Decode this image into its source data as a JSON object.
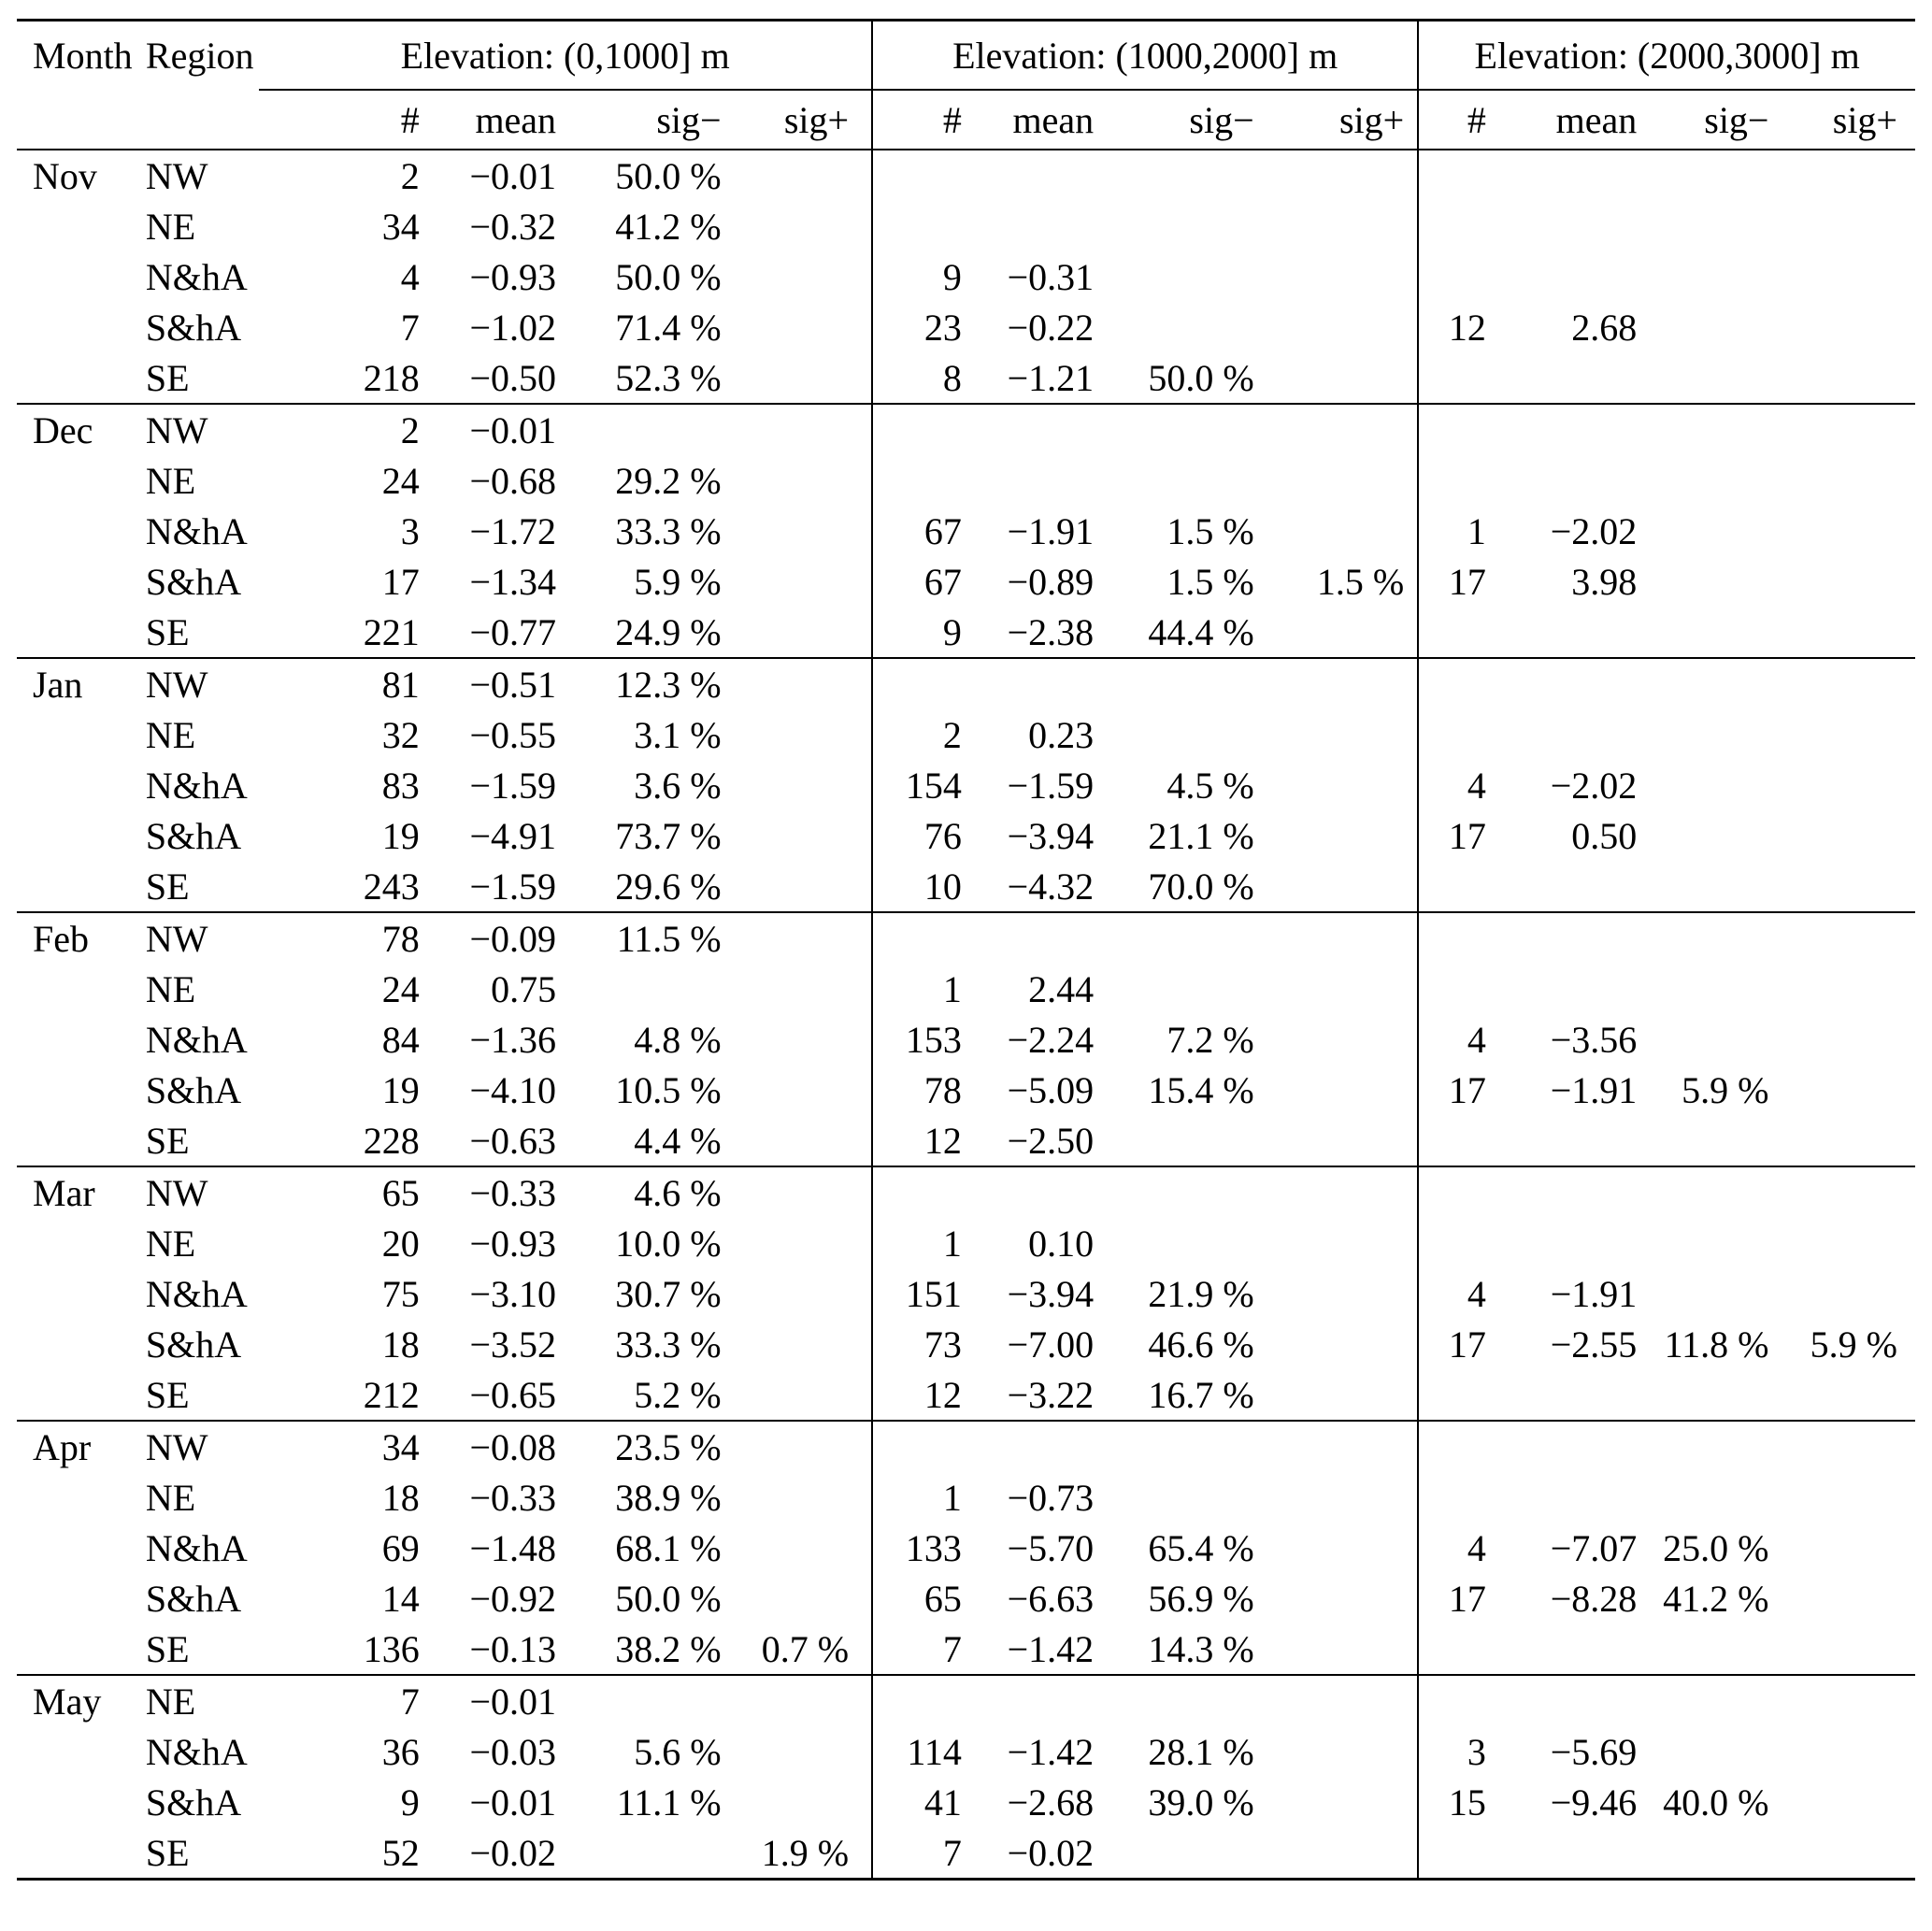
{
  "table": {
    "headers": {
      "month": "Month",
      "region": "Region"
    },
    "elevation_groups": [
      {
        "label": "Elevation: (0,1000] m",
        "subcols": [
          "#",
          "mean",
          "sig−",
          "sig+"
        ]
      },
      {
        "label": "Elevation: (1000,2000] m",
        "subcols": [
          "#",
          "mean",
          "sig−",
          "sig+"
        ]
      },
      {
        "label": "Elevation: (2000,3000] m",
        "subcols": [
          "#",
          "mean",
          "sig−",
          "sig+"
        ]
      }
    ],
    "months": [
      {
        "month": "Nov",
        "rows": [
          {
            "region": "NW",
            "g1": [
              "2",
              "−0.01",
              "50.0 %",
              ""
            ],
            "g2": [
              "",
              "",
              "",
              ""
            ],
            "g3": [
              "",
              "",
              "",
              ""
            ]
          },
          {
            "region": "NE",
            "g1": [
              "34",
              "−0.32",
              "41.2 %",
              ""
            ],
            "g2": [
              "",
              "",
              "",
              ""
            ],
            "g3": [
              "",
              "",
              "",
              ""
            ]
          },
          {
            "region": "N&hA",
            "g1": [
              "4",
              "−0.93",
              "50.0 %",
              ""
            ],
            "g2": [
              "9",
              "−0.31",
              "",
              ""
            ],
            "g3": [
              "",
              "",
              "",
              ""
            ]
          },
          {
            "region": "S&hA",
            "g1": [
              "7",
              "−1.02",
              "71.4 %",
              ""
            ],
            "g2": [
              "23",
              "−0.22",
              "",
              ""
            ],
            "g3": [
              "12",
              "2.68",
              "",
              ""
            ]
          },
          {
            "region": "SE",
            "g1": [
              "218",
              "−0.50",
              "52.3 %",
              ""
            ],
            "g2": [
              "8",
              "−1.21",
              "50.0 %",
              ""
            ],
            "g3": [
              "",
              "",
              "",
              ""
            ]
          }
        ]
      },
      {
        "month": "Dec",
        "rows": [
          {
            "region": "NW",
            "g1": [
              "2",
              "−0.01",
              "",
              ""
            ],
            "g2": [
              "",
              "",
              "",
              ""
            ],
            "g3": [
              "",
              "",
              "",
              ""
            ]
          },
          {
            "region": "NE",
            "g1": [
              "24",
              "−0.68",
              "29.2 %",
              ""
            ],
            "g2": [
              "",
              "",
              "",
              ""
            ],
            "g3": [
              "",
              "",
              "",
              ""
            ]
          },
          {
            "region": "N&hA",
            "g1": [
              "3",
              "−1.72",
              "33.3 %",
              ""
            ],
            "g2": [
              "67",
              "−1.91",
              "1.5 %",
              ""
            ],
            "g3": [
              "1",
              "−2.02",
              "",
              ""
            ]
          },
          {
            "region": "S&hA",
            "g1": [
              "17",
              "−1.34",
              "5.9 %",
              ""
            ],
            "g2": [
              "67",
              "−0.89",
              "1.5 %",
              "1.5 %"
            ],
            "g3": [
              "17",
              "3.98",
              "",
              ""
            ]
          },
          {
            "region": "SE",
            "g1": [
              "221",
              "−0.77",
              "24.9 %",
              ""
            ],
            "g2": [
              "9",
              "−2.38",
              "44.4 %",
              ""
            ],
            "g3": [
              "",
              "",
              "",
              ""
            ]
          }
        ]
      },
      {
        "month": "Jan",
        "rows": [
          {
            "region": "NW",
            "g1": [
              "81",
              "−0.51",
              "12.3 %",
              ""
            ],
            "g2": [
              "",
              "",
              "",
              ""
            ],
            "g3": [
              "",
              "",
              "",
              ""
            ]
          },
          {
            "region": "NE",
            "g1": [
              "32",
              "−0.55",
              "3.1 %",
              ""
            ],
            "g2": [
              "2",
              "0.23",
              "",
              ""
            ],
            "g3": [
              "",
              "",
              "",
              ""
            ]
          },
          {
            "region": "N&hA",
            "g1": [
              "83",
              "−1.59",
              "3.6 %",
              ""
            ],
            "g2": [
              "154",
              "−1.59",
              "4.5 %",
              ""
            ],
            "g3": [
              "4",
              "−2.02",
              "",
              ""
            ]
          },
          {
            "region": "S&hA",
            "g1": [
              "19",
              "−4.91",
              "73.7 %",
              ""
            ],
            "g2": [
              "76",
              "−3.94",
              "21.1 %",
              ""
            ],
            "g3": [
              "17",
              "0.50",
              "",
              ""
            ]
          },
          {
            "region": "SE",
            "g1": [
              "243",
              "−1.59",
              "29.6 %",
              ""
            ],
            "g2": [
              "10",
              "−4.32",
              "70.0 %",
              ""
            ],
            "g3": [
              "",
              "",
              "",
              ""
            ]
          }
        ]
      },
      {
        "month": "Feb",
        "rows": [
          {
            "region": "NW",
            "g1": [
              "78",
              "−0.09",
              "11.5 %",
              ""
            ],
            "g2": [
              "",
              "",
              "",
              ""
            ],
            "g3": [
              "",
              "",
              "",
              ""
            ]
          },
          {
            "region": "NE",
            "g1": [
              "24",
              "0.75",
              "",
              ""
            ],
            "g2": [
              "1",
              "2.44",
              "",
              ""
            ],
            "g3": [
              "",
              "",
              "",
              ""
            ]
          },
          {
            "region": "N&hA",
            "g1": [
              "84",
              "−1.36",
              "4.8 %",
              ""
            ],
            "g2": [
              "153",
              "−2.24",
              "7.2 %",
              ""
            ],
            "g3": [
              "4",
              "−3.56",
              "",
              ""
            ]
          },
          {
            "region": "S&hA",
            "g1": [
              "19",
              "−4.10",
              "10.5 %",
              ""
            ],
            "g2": [
              "78",
              "−5.09",
              "15.4 %",
              ""
            ],
            "g3": [
              "17",
              "−1.91",
              "5.9 %",
              ""
            ]
          },
          {
            "region": "SE",
            "g1": [
              "228",
              "−0.63",
              "4.4 %",
              ""
            ],
            "g2": [
              "12",
              "−2.50",
              "",
              ""
            ],
            "g3": [
              "",
              "",
              "",
              ""
            ]
          }
        ]
      },
      {
        "month": "Mar",
        "rows": [
          {
            "region": "NW",
            "g1": [
              "65",
              "−0.33",
              "4.6 %",
              ""
            ],
            "g2": [
              "",
              "",
              "",
              ""
            ],
            "g3": [
              "",
              "",
              "",
              ""
            ]
          },
          {
            "region": "NE",
            "g1": [
              "20",
              "−0.93",
              "10.0 %",
              ""
            ],
            "g2": [
              "1",
              "0.10",
              "",
              ""
            ],
            "g3": [
              "",
              "",
              "",
              ""
            ]
          },
          {
            "region": "N&hA",
            "g1": [
              "75",
              "−3.10",
              "30.7 %",
              ""
            ],
            "g2": [
              "151",
              "−3.94",
              "21.9 %",
              ""
            ],
            "g3": [
              "4",
              "−1.91",
              "",
              ""
            ]
          },
          {
            "region": "S&hA",
            "g1": [
              "18",
              "−3.52",
              "33.3 %",
              ""
            ],
            "g2": [
              "73",
              "−7.00",
              "46.6 %",
              ""
            ],
            "g3": [
              "17",
              "−2.55",
              "11.8 %",
              "5.9 %"
            ]
          },
          {
            "region": "SE",
            "g1": [
              "212",
              "−0.65",
              "5.2 %",
              ""
            ],
            "g2": [
              "12",
              "−3.22",
              "16.7 %",
              ""
            ],
            "g3": [
              "",
              "",
              "",
              ""
            ]
          }
        ]
      },
      {
        "month": "Apr",
        "rows": [
          {
            "region": "NW",
            "g1": [
              "34",
              "−0.08",
              "23.5 %",
              ""
            ],
            "g2": [
              "",
              "",
              "",
              ""
            ],
            "g3": [
              "",
              "",
              "",
              ""
            ]
          },
          {
            "region": "NE",
            "g1": [
              "18",
              "−0.33",
              "38.9 %",
              ""
            ],
            "g2": [
              "1",
              "−0.73",
              "",
              ""
            ],
            "g3": [
              "",
              "",
              "",
              ""
            ]
          },
          {
            "region": "N&hA",
            "g1": [
              "69",
              "−1.48",
              "68.1 %",
              ""
            ],
            "g2": [
              "133",
              "−5.70",
              "65.4 %",
              ""
            ],
            "g3": [
              "4",
              "−7.07",
              "25.0 %",
              ""
            ]
          },
          {
            "region": "S&hA",
            "g1": [
              "14",
              "−0.92",
              "50.0 %",
              ""
            ],
            "g2": [
              "65",
              "−6.63",
              "56.9 %",
              ""
            ],
            "g3": [
              "17",
              "−8.28",
              "41.2 %",
              ""
            ]
          },
          {
            "region": "SE",
            "g1": [
              "136",
              "−0.13",
              "38.2 %",
              "0.7 %"
            ],
            "g2": [
              "7",
              "−1.42",
              "14.3 %",
              ""
            ],
            "g3": [
              "",
              "",
              "",
              ""
            ]
          }
        ]
      },
      {
        "month": "May",
        "rows": [
          {
            "region": "NE",
            "g1": [
              "7",
              "−0.01",
              "",
              ""
            ],
            "g2": [
              "",
              "",
              "",
              ""
            ],
            "g3": [
              "",
              "",
              "",
              ""
            ]
          },
          {
            "region": "N&hA",
            "g1": [
              "36",
              "−0.03",
              "5.6 %",
              ""
            ],
            "g2": [
              "114",
              "−1.42",
              "28.1 %",
              ""
            ],
            "g3": [
              "3",
              "−5.69",
              "",
              ""
            ]
          },
          {
            "region": "S&hA",
            "g1": [
              "9",
              "−0.01",
              "11.1 %",
              ""
            ],
            "g2": [
              "41",
              "−2.68",
              "39.0 %",
              ""
            ],
            "g3": [
              "15",
              "−9.46",
              "40.0 %",
              ""
            ]
          },
          {
            "region": "SE",
            "g1": [
              "52",
              "−0.02",
              "",
              "1.9 %"
            ],
            "g2": [
              "7",
              "−0.02",
              "",
              ""
            ],
            "g3": [
              "",
              "",
              "",
              ""
            ]
          }
        ]
      }
    ]
  }
}
